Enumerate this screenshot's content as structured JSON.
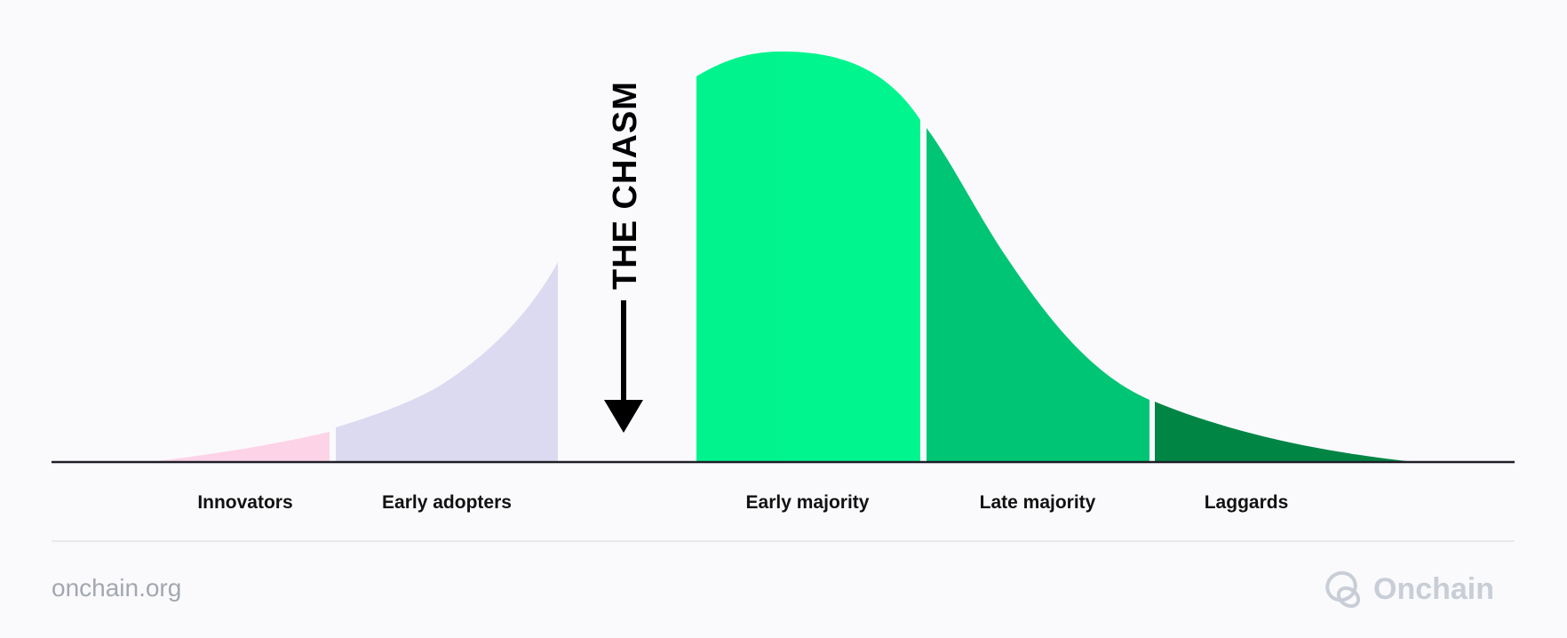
{
  "diagram": {
    "chasm_label": "THE CHASM",
    "segments": [
      {
        "label": "Innovators",
        "color": "#FDD3E7"
      },
      {
        "label": "Early adopters",
        "color": "#DCDAF0"
      },
      {
        "label": "Early majority",
        "color": "#00F58E"
      },
      {
        "label": "Late majority",
        "color": "#00C574"
      },
      {
        "label": "Laggards",
        "color": "#008545"
      }
    ]
  },
  "footer": {
    "site": "onchain.org",
    "brand": "Onchain",
    "brand_icon": "onchain-logo-icon"
  }
}
